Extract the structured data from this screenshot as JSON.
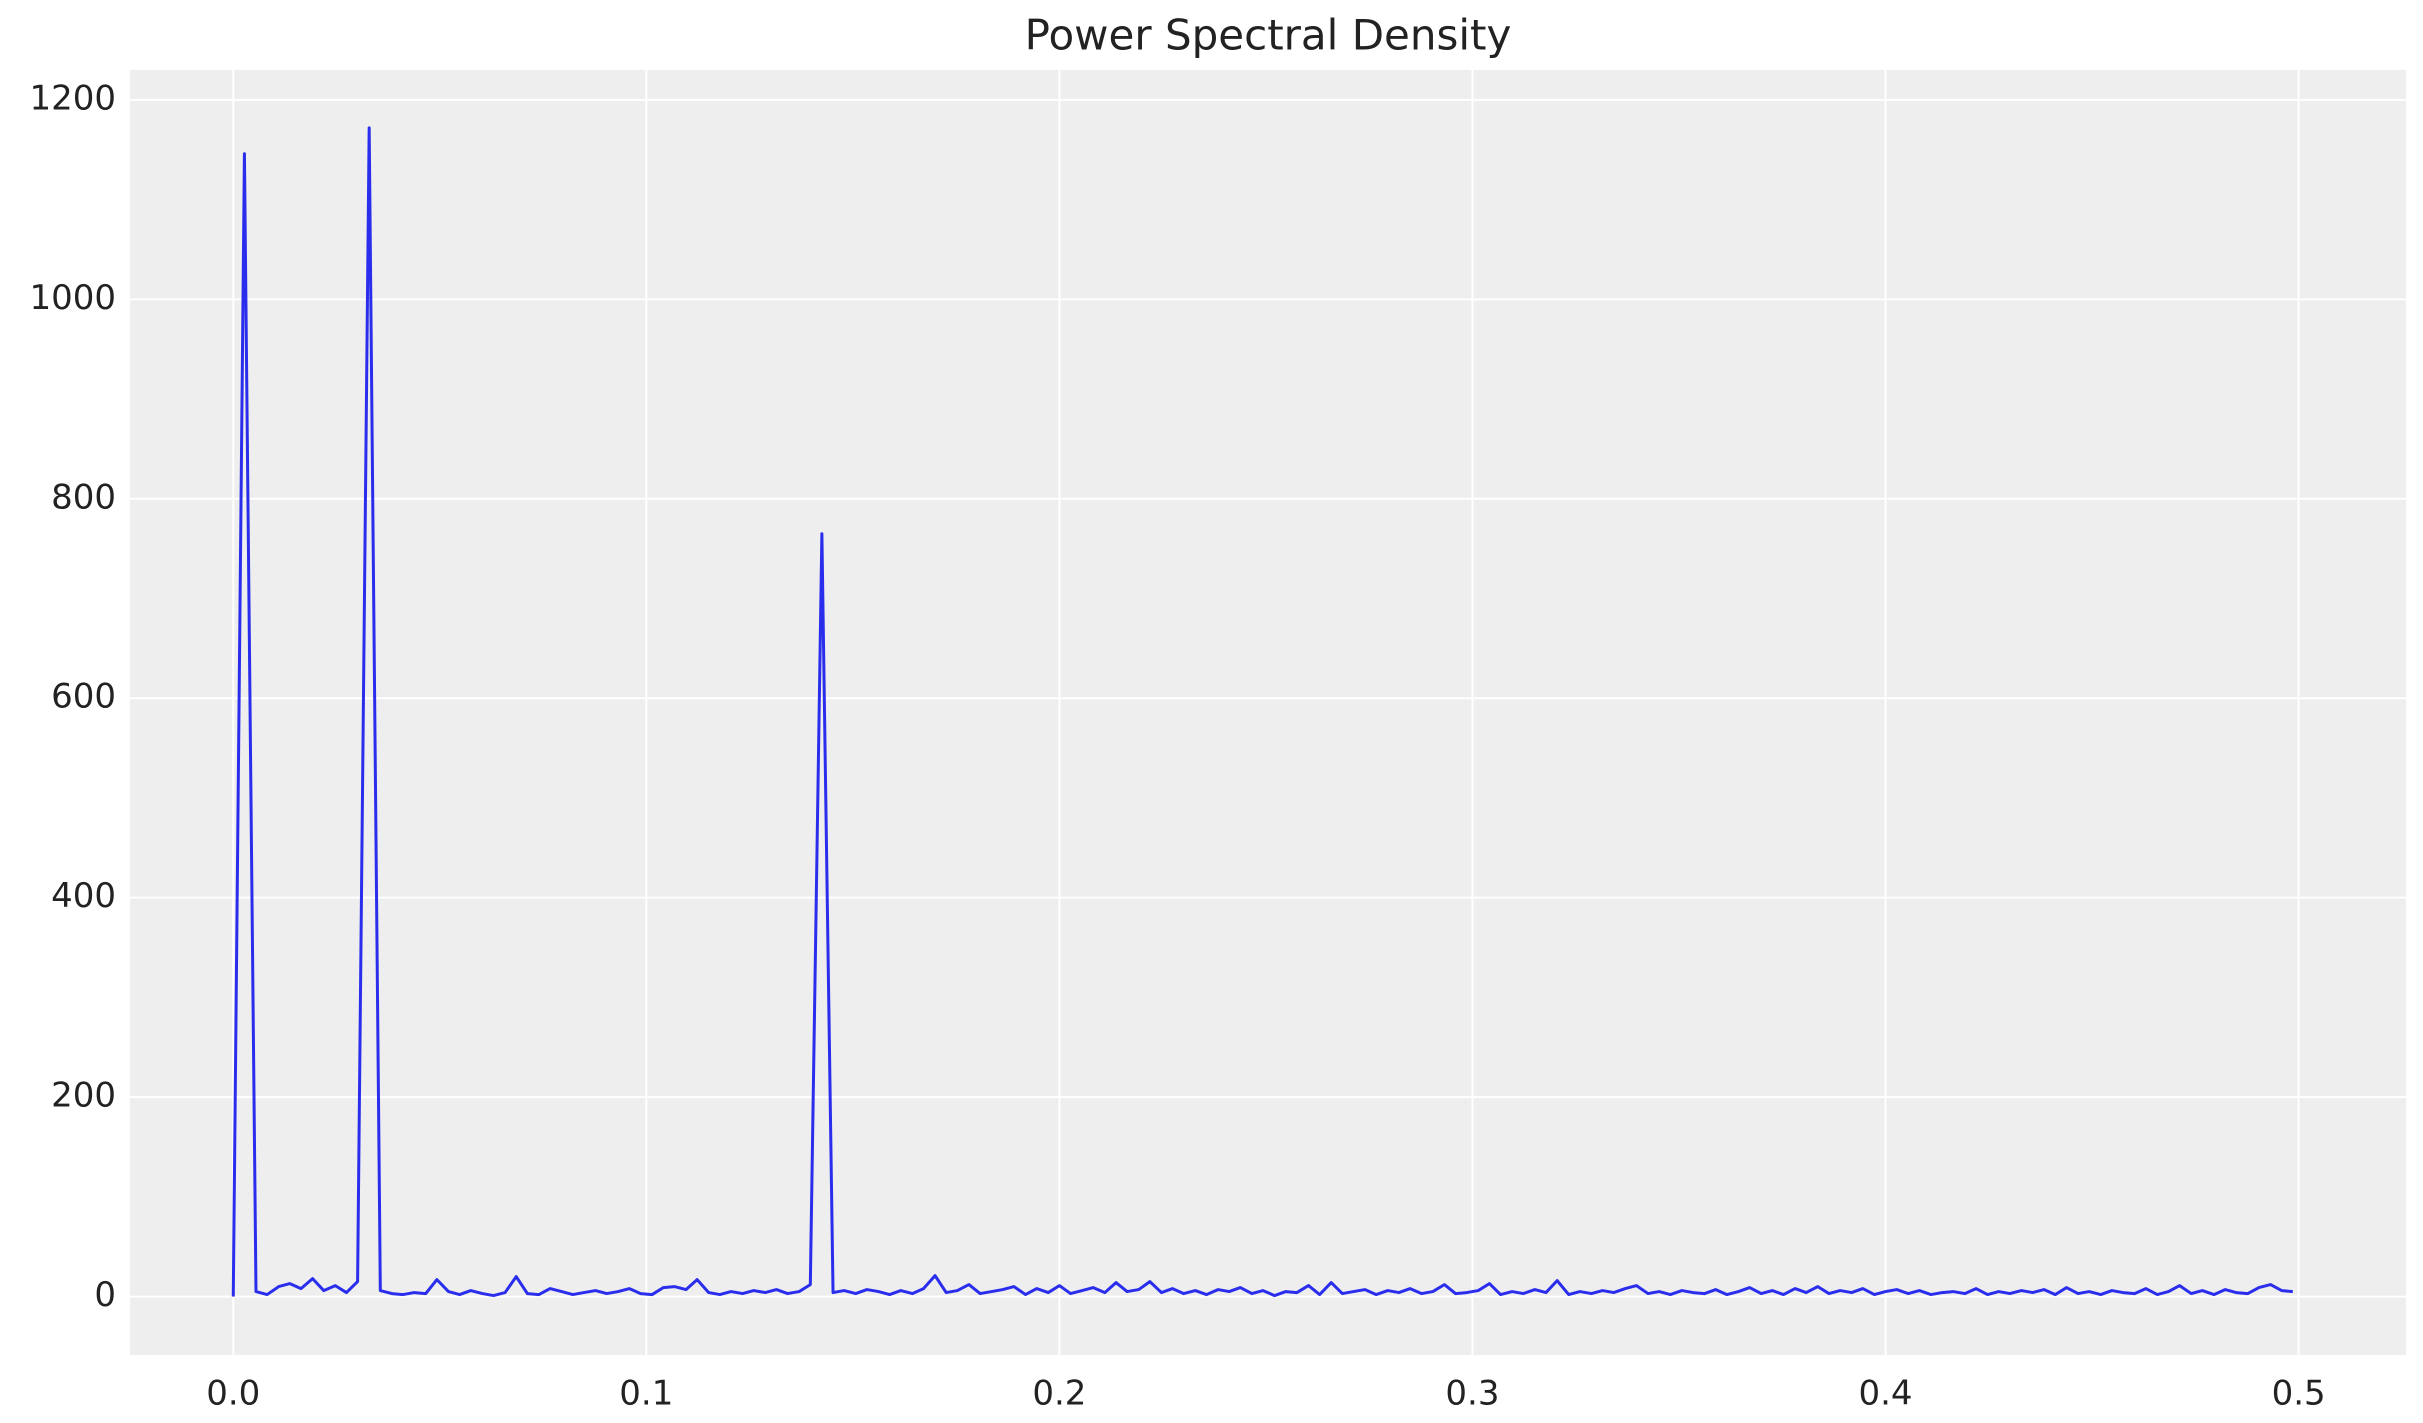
{
  "chart_data": {
    "type": "line",
    "title": "Power Spectral Density",
    "x": [
      0,
      0.0027,
      0.0055,
      0.0082,
      0.011,
      0.0137,
      0.0164,
      0.0192,
      0.0219,
      0.0247,
      0.0274,
      0.0301,
      0.0329,
      0.0356,
      0.0384,
      0.0411,
      0.0438,
      0.0466,
      0.0493,
      0.0521,
      0.0548,
      0.0575,
      0.0603,
      0.063,
      0.0658,
      0.0685,
      0.0712,
      0.074,
      0.0767,
      0.0795,
      0.0822,
      0.0849,
      0.0877,
      0.0904,
      0.0932,
      0.0959,
      0.0986,
      0.1014,
      0.1041,
      0.1068,
      0.1096,
      0.1123,
      0.1151,
      0.1178,
      0.1205,
      0.1233,
      0.126,
      0.1288,
      0.1315,
      0.1342,
      0.137,
      0.1397,
      0.1425,
      0.1452,
      0.1479,
      0.1507,
      0.1534,
      0.1562,
      0.1589,
      0.1616,
      0.1644,
      0.1671,
      0.1699,
      0.1726,
      0.1753,
      0.1781,
      0.1808,
      0.1836,
      0.1863,
      0.189,
      0.1918,
      0.1945,
      0.1973,
      0.2,
      0.2027,
      0.2055,
      0.2082,
      0.211,
      0.2137,
      0.2164,
      0.2192,
      0.2219,
      0.2247,
      0.2274,
      0.2301,
      0.2329,
      0.2356,
      0.2384,
      0.2411,
      0.2438,
      0.2466,
      0.2493,
      0.2521,
      0.2548,
      0.2575,
      0.2603,
      0.263,
      0.2658,
      0.2685,
      0.2712,
      0.274,
      0.2767,
      0.2795,
      0.2822,
      0.2849,
      0.2877,
      0.2904,
      0.2932,
      0.2959,
      0.2986,
      0.3014,
      0.3041,
      0.3068,
      0.3096,
      0.3123,
      0.3151,
      0.3178,
      0.3205,
      0.3233,
      0.326,
      0.3288,
      0.3315,
      0.3342,
      0.337,
      0.3397,
      0.3425,
      0.3452,
      0.3479,
      0.3507,
      0.3534,
      0.3562,
      0.3589,
      0.3616,
      0.3644,
      0.3671,
      0.3699,
      0.3726,
      0.3753,
      0.3781,
      0.3808,
      0.3836,
      0.3863,
      0.389,
      0.3918,
      0.3945,
      0.3973,
      0.4,
      0.4027,
      0.4055,
      0.4082,
      0.411,
      0.4137,
      0.4164,
      0.4192,
      0.4219,
      0.4247,
      0.4274,
      0.4301,
      0.4329,
      0.4356,
      0.4384,
      0.4411,
      0.4438,
      0.4466,
      0.4493,
      0.4521,
      0.4548,
      0.4575,
      0.4603,
      0.463,
      0.4658,
      0.4685,
      0.4712,
      0.474,
      0.4767,
      0.4795,
      0.4822,
      0.4849,
      0.4877,
      0.4904,
      0.4932,
      0.4959,
      0.4986
    ],
    "series": [
      {
        "color": "#2a2eec",
        "values": [
          0,
          1146,
          5,
          2,
          10,
          13,
          8,
          18,
          6,
          11,
          4,
          15,
          1172,
          6,
          3,
          2,
          4,
          3,
          17,
          5,
          2,
          6,
          3,
          1,
          4,
          20,
          3,
          2,
          8,
          5,
          2,
          4,
          6,
          3,
          5,
          8,
          3,
          2,
          9,
          10,
          7,
          17,
          4,
          2,
          5,
          3,
          6,
          4,
          7,
          3,
          5,
          12,
          765,
          4,
          6,
          3,
          7,
          5,
          2,
          6,
          3,
          8,
          21,
          4,
          6,
          12,
          3,
          5,
          7,
          10,
          2,
          8,
          4,
          11,
          3,
          6,
          9,
          4,
          14,
          5,
          7,
          15,
          4,
          8,
          3,
          6,
          2,
          7,
          5,
          9,
          3,
          6,
          1,
          5,
          4,
          11,
          2,
          14,
          3,
          5,
          7,
          2,
          6,
          4,
          8,
          3,
          5,
          12,
          3,
          4,
          6,
          13,
          2,
          5,
          3,
          7,
          4,
          16,
          2,
          5,
          3,
          6,
          4,
          8,
          11,
          3,
          5,
          2,
          6,
          4,
          3,
          7,
          2,
          5,
          9,
          3,
          6,
          2,
          8,
          4,
          10,
          3,
          6,
          4,
          8,
          2,
          5,
          7,
          3,
          6,
          2,
          4,
          5,
          3,
          8,
          2,
          5,
          3,
          6,
          4,
          7,
          2,
          9,
          3,
          5,
          2,
          6,
          4,
          3,
          8,
          2,
          5,
          11,
          3,
          6,
          2,
          7,
          4,
          3,
          9,
          12,
          6,
          5
        ]
      }
    ],
    "xlim": [
      -0.025,
      0.526
    ],
    "ylim": [
      -58.6,
      1230
    ],
    "xticks": [
      {
        "value": 0,
        "label": "0.0"
      },
      0.1,
      0.2,
      0.3,
      0.4,
      0.5
    ],
    "yticks": [
      0,
      200,
      400,
      600,
      800,
      1000,
      1200
    ],
    "grid": true
  }
}
